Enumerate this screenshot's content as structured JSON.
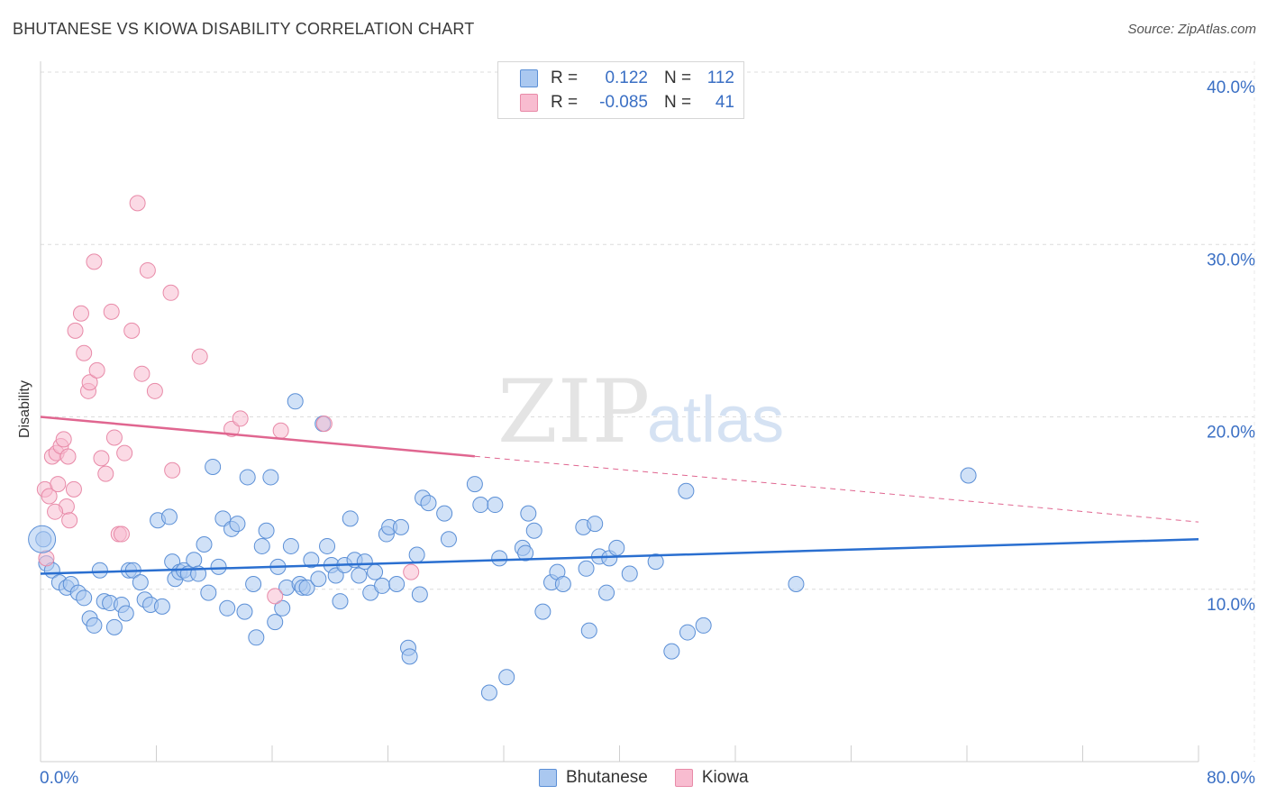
{
  "header": {
    "title": "BHUTANESE VS KIOWA DISABILITY CORRELATION CHART",
    "source": "Source: ZipAtlas.com"
  },
  "watermark": {
    "zip": "ZIP",
    "atlas": "atlas"
  },
  "legend": {
    "rows": [
      {
        "r_label": "R =",
        "r_value": "0.122",
        "n_label": "N =",
        "n_value": "112"
      },
      {
        "r_label": "R =",
        "r_value": "-0.085",
        "n_label": "N =",
        "n_value": "41"
      }
    ]
  },
  "colors": {
    "bhutanese_fill": "#aac8f0",
    "bhutanese_stroke": "#5b8fd6",
    "bhutanese_line": "#2a6fd0",
    "kiowa_fill": "#f8bcd0",
    "kiowa_stroke": "#e88aa8",
    "kiowa_line": "#e06690",
    "grid": "#dcdcdc",
    "axis_text": "#3a6fc4"
  },
  "chart_data": {
    "type": "scatter",
    "title": "BHUTANESE VS KIOWA DISABILITY CORRELATION CHART",
    "xlabel": "",
    "ylabel": "Disability",
    "xlim": [
      0,
      80
    ],
    "ylim": [
      0,
      40
    ],
    "x_tick_labels": [
      "0.0%",
      "80.0%"
    ],
    "y_tick_labels": [
      "10.0%",
      "20.0%",
      "30.0%",
      "40.0%"
    ],
    "y_ticks": [
      10,
      20,
      30,
      40
    ],
    "grid": true,
    "legend_position": "bottom-center",
    "series": [
      {
        "name": "Bhutanese",
        "r": 0.122,
        "n": 112,
        "trend": {
          "x": [
            0,
            80
          ],
          "y": [
            10.9,
            12.9
          ]
        },
        "points": [
          [
            0.2,
            12.9
          ],
          [
            0.4,
            11.5
          ],
          [
            0.8,
            11.1
          ],
          [
            1.3,
            10.4
          ],
          [
            1.8,
            10.1
          ],
          [
            2.1,
            10.3
          ],
          [
            2.6,
            9.8
          ],
          [
            3.0,
            9.5
          ],
          [
            3.4,
            8.3
          ],
          [
            3.7,
            7.9
          ],
          [
            4.1,
            11.1
          ],
          [
            4.4,
            9.3
          ],
          [
            4.8,
            9.2
          ],
          [
            5.1,
            7.8
          ],
          [
            5.6,
            9.1
          ],
          [
            5.9,
            8.6
          ],
          [
            6.1,
            11.1
          ],
          [
            6.4,
            11.1
          ],
          [
            6.9,
            10.4
          ],
          [
            7.2,
            9.4
          ],
          [
            7.6,
            9.1
          ],
          [
            8.1,
            14.0
          ],
          [
            8.4,
            9.0
          ],
          [
            8.9,
            14.2
          ],
          [
            9.1,
            11.6
          ],
          [
            9.3,
            10.6
          ],
          [
            9.6,
            11.0
          ],
          [
            9.9,
            11.1
          ],
          [
            10.2,
            10.9
          ],
          [
            10.6,
            11.7
          ],
          [
            10.9,
            10.9
          ],
          [
            11.3,
            12.6
          ],
          [
            11.6,
            9.8
          ],
          [
            11.9,
            17.1
          ],
          [
            12.3,
            11.3
          ],
          [
            12.6,
            14.1
          ],
          [
            12.9,
            8.9
          ],
          [
            13.2,
            13.5
          ],
          [
            13.6,
            13.8
          ],
          [
            14.1,
            8.7
          ],
          [
            14.3,
            16.5
          ],
          [
            14.7,
            10.3
          ],
          [
            14.9,
            7.2
          ],
          [
            15.3,
            12.5
          ],
          [
            15.6,
            13.4
          ],
          [
            15.9,
            16.5
          ],
          [
            16.2,
            8.1
          ],
          [
            16.4,
            11.3
          ],
          [
            16.7,
            8.9
          ],
          [
            17.0,
            10.1
          ],
          [
            17.3,
            12.5
          ],
          [
            17.6,
            20.9
          ],
          [
            17.9,
            10.3
          ],
          [
            18.1,
            10.1
          ],
          [
            18.4,
            10.1
          ],
          [
            18.7,
            11.7
          ],
          [
            19.2,
            10.6
          ],
          [
            19.5,
            19.6
          ],
          [
            19.8,
            12.5
          ],
          [
            20.1,
            11.4
          ],
          [
            20.4,
            10.8
          ],
          [
            20.7,
            9.3
          ],
          [
            21.0,
            11.4
          ],
          [
            21.4,
            14.1
          ],
          [
            21.7,
            11.7
          ],
          [
            22.0,
            10.8
          ],
          [
            22.4,
            11.6
          ],
          [
            22.8,
            9.8
          ],
          [
            23.1,
            11.0
          ],
          [
            23.6,
            10.2
          ],
          [
            23.9,
            13.2
          ],
          [
            24.1,
            13.6
          ],
          [
            24.6,
            10.3
          ],
          [
            24.9,
            13.6
          ],
          [
            25.4,
            6.6
          ],
          [
            25.5,
            6.1
          ],
          [
            26.0,
            12.0
          ],
          [
            26.2,
            9.7
          ],
          [
            26.4,
            15.3
          ],
          [
            26.8,
            15.0
          ],
          [
            27.9,
            14.4
          ],
          [
            28.2,
            12.9
          ],
          [
            30.0,
            16.1
          ],
          [
            30.4,
            14.9
          ],
          [
            31.0,
            4.0
          ],
          [
            31.4,
            14.9
          ],
          [
            31.7,
            11.8
          ],
          [
            32.2,
            4.9
          ],
          [
            33.3,
            12.4
          ],
          [
            33.7,
            14.4
          ],
          [
            34.1,
            13.4
          ],
          [
            34.7,
            8.7
          ],
          [
            35.3,
            10.4
          ],
          [
            35.7,
            11.0
          ],
          [
            36.1,
            10.3
          ],
          [
            37.5,
            13.6
          ],
          [
            37.7,
            11.2
          ],
          [
            37.9,
            7.6
          ],
          [
            38.3,
            13.8
          ],
          [
            38.6,
            11.9
          ],
          [
            39.1,
            9.8
          ],
          [
            39.3,
            11.8
          ],
          [
            39.8,
            12.4
          ],
          [
            40.7,
            10.9
          ],
          [
            42.5,
            11.6
          ],
          [
            43.6,
            6.4
          ],
          [
            44.6,
            15.7
          ],
          [
            44.7,
            7.5
          ],
          [
            45.8,
            7.9
          ],
          [
            52.2,
            10.3
          ],
          [
            64.1,
            16.6
          ],
          [
            33.5,
            12.1
          ]
        ]
      },
      {
        "name": "Kiowa",
        "r": -0.085,
        "n": 41,
        "trend": {
          "x": [
            0,
            80
          ],
          "y": [
            20.0,
            13.9
          ]
        },
        "trend_solid_until_x": 30,
        "points": [
          [
            0.3,
            15.8
          ],
          [
            0.4,
            11.8
          ],
          [
            0.6,
            15.4
          ],
          [
            0.8,
            17.7
          ],
          [
            1.1,
            17.9
          ],
          [
            1.2,
            16.1
          ],
          [
            1.4,
            18.3
          ],
          [
            1.6,
            18.7
          ],
          [
            1.8,
            14.8
          ],
          [
            1.9,
            17.7
          ],
          [
            2.0,
            14.0
          ],
          [
            2.3,
            15.8
          ],
          [
            2.4,
            25.0
          ],
          [
            2.8,
            26.0
          ],
          [
            3.0,
            23.7
          ],
          [
            3.3,
            21.5
          ],
          [
            3.4,
            22.0
          ],
          [
            3.7,
            29.0
          ],
          [
            3.9,
            22.7
          ],
          [
            4.2,
            17.6
          ],
          [
            4.5,
            16.7
          ],
          [
            4.9,
            26.1
          ],
          [
            5.1,
            18.8
          ],
          [
            5.4,
            13.2
          ],
          [
            5.6,
            13.2
          ],
          [
            5.8,
            17.9
          ],
          [
            6.3,
            25.0
          ],
          [
            6.7,
            32.4
          ],
          [
            7.0,
            22.5
          ],
          [
            7.4,
            28.5
          ],
          [
            7.9,
            21.5
          ],
          [
            9.0,
            27.2
          ],
          [
            9.1,
            16.9
          ],
          [
            11.0,
            23.5
          ],
          [
            13.2,
            19.3
          ],
          [
            13.8,
            19.9
          ],
          [
            16.2,
            9.6
          ],
          [
            16.6,
            19.2
          ],
          [
            19.6,
            19.6
          ],
          [
            25.6,
            11.0
          ],
          [
            1.0,
            14.5
          ]
        ]
      }
    ]
  },
  "bottom_legend": {
    "items": [
      "Bhutanese",
      "Kiowa"
    ]
  }
}
